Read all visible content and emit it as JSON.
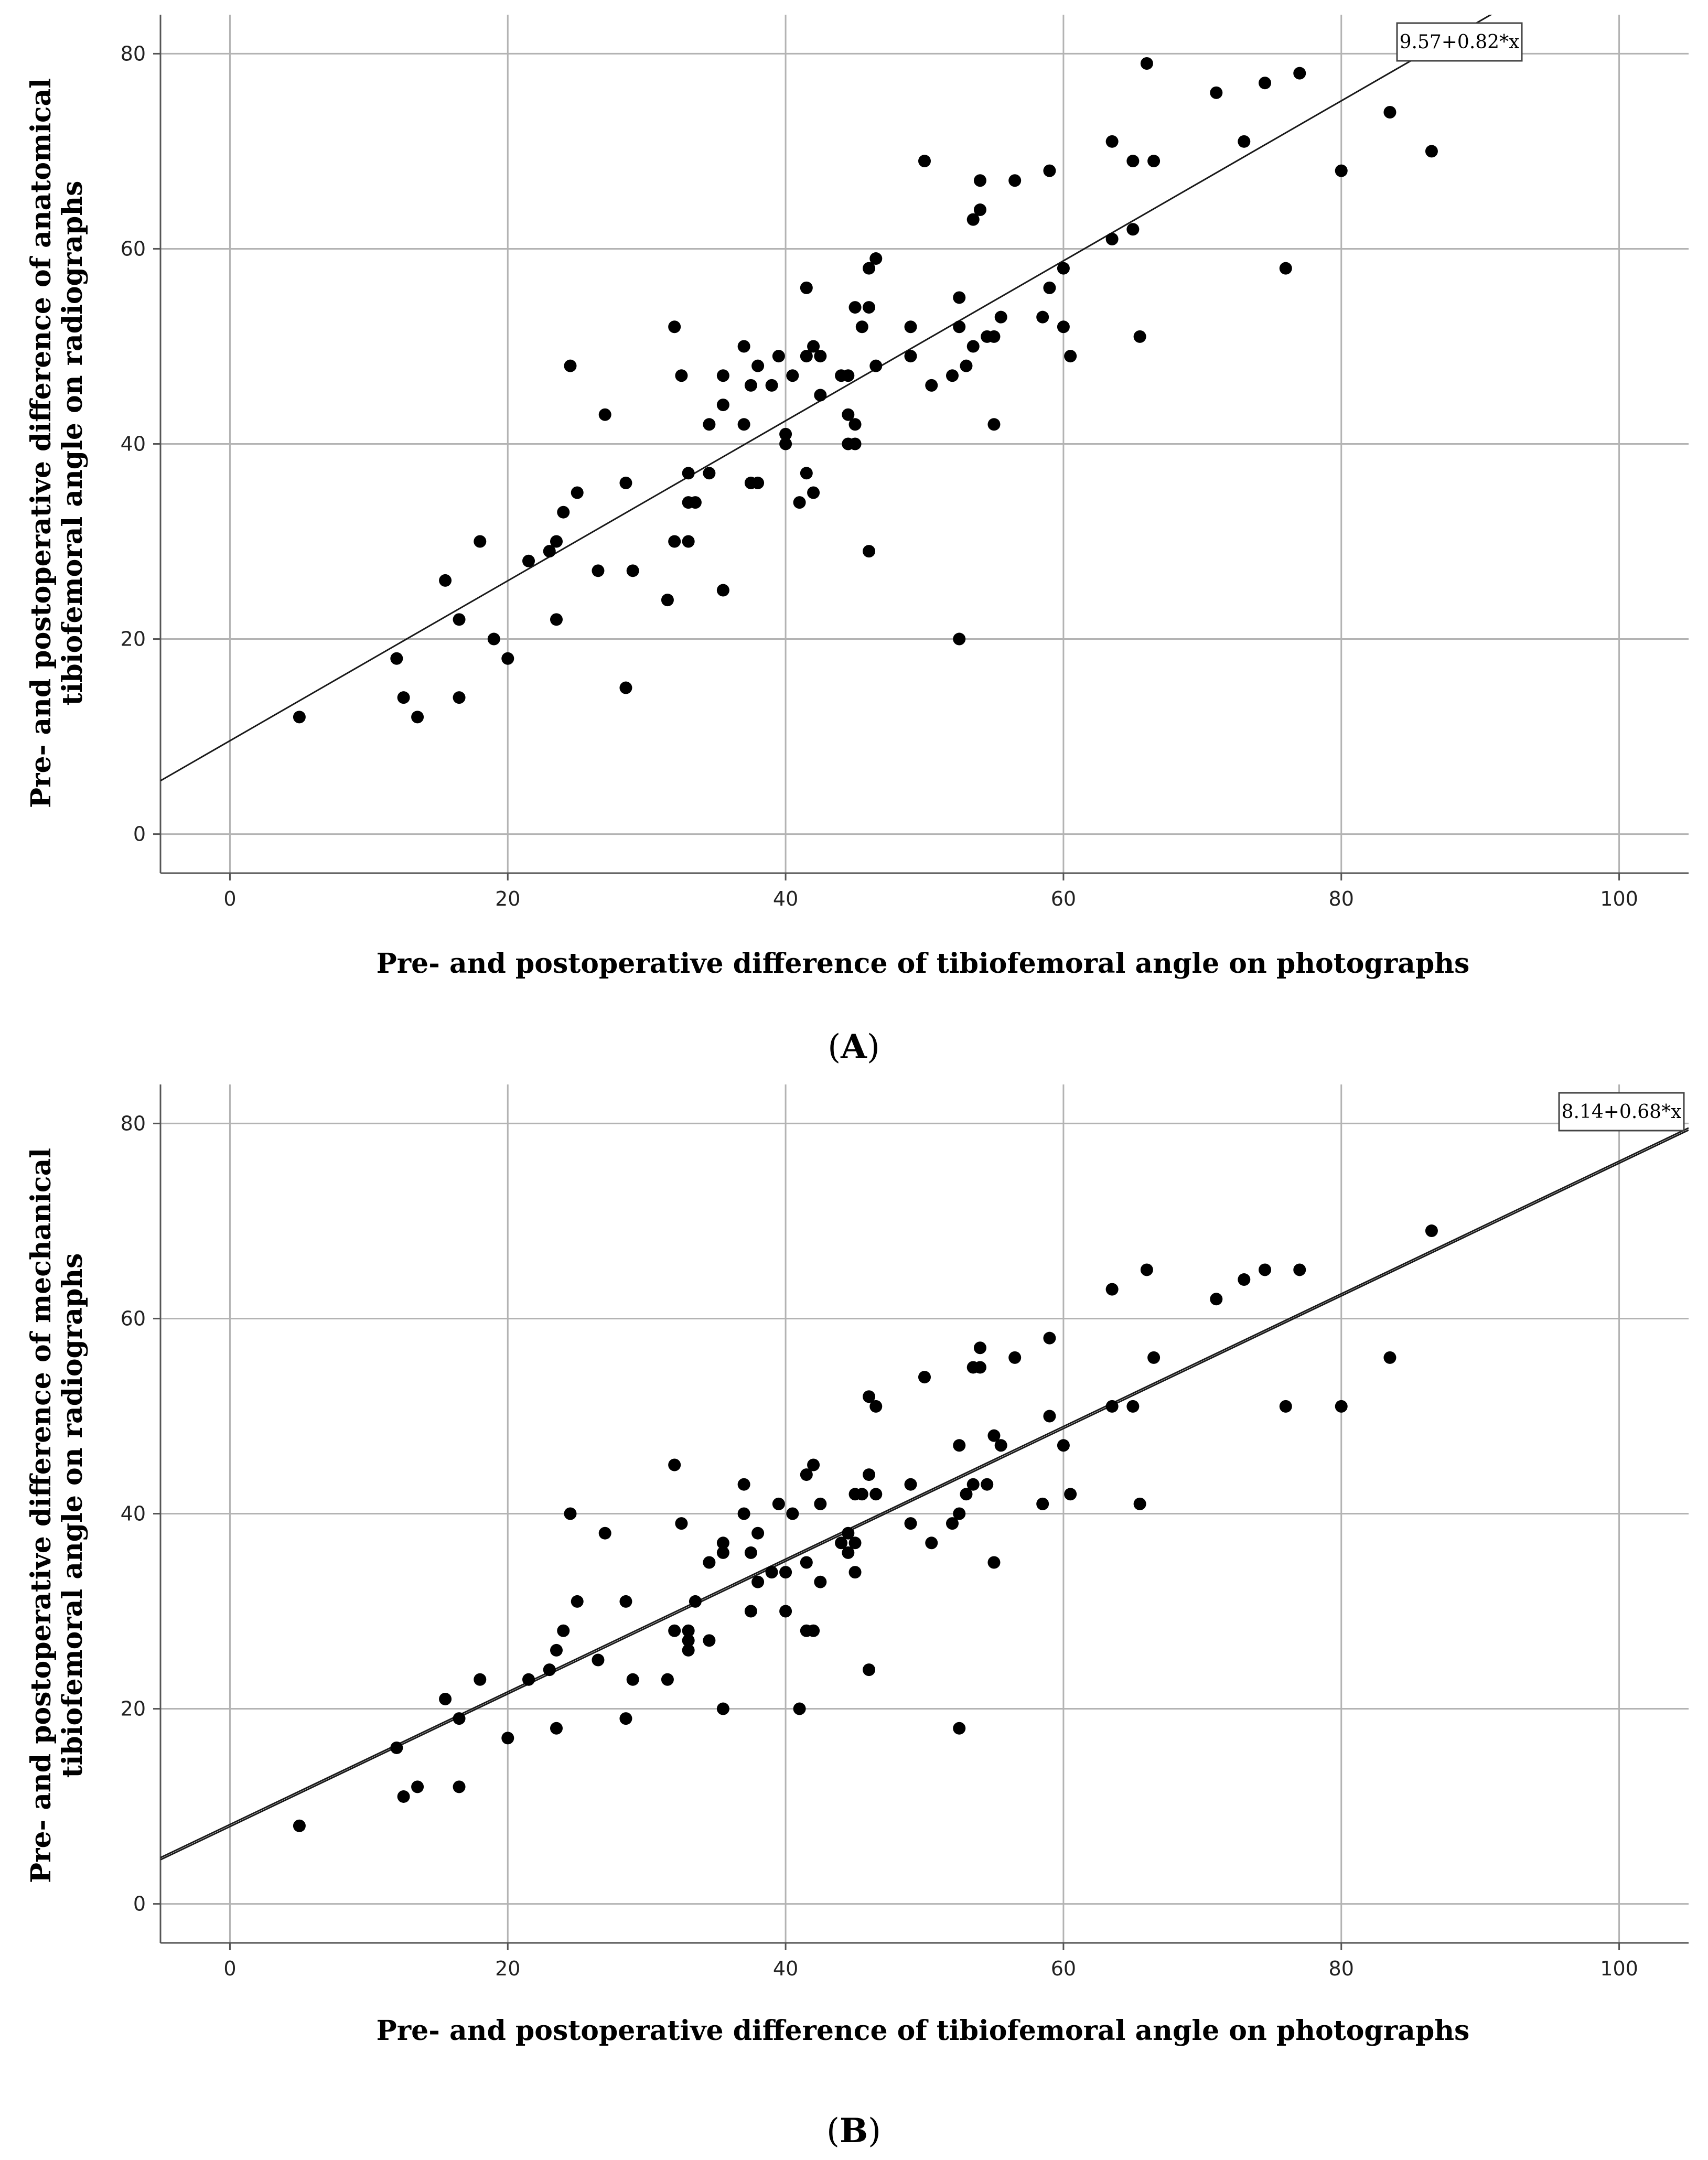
{
  "chart_data": [
    {
      "type": "scatter",
      "panel_label": "A",
      "xlabel": "Pre- and postoperative difference of tibiofemoral angle on photographs",
      "ylabel_line1": "Pre- and postoperative difference of anatomical",
      "ylabel_line2": "tibiofemoral angle on radiographs",
      "xlim": [
        -5,
        105
      ],
      "ylim": [
        -4,
        84
      ],
      "xticks": [
        0,
        20,
        40,
        60,
        80,
        100
      ],
      "yticks": [
        0,
        20,
        40,
        60,
        80
      ],
      "grid": true,
      "fit": {
        "intercept": 9.57,
        "slope": 0.82,
        "label": "9.57+0.82*x",
        "lines": 1
      },
      "points": [
        [
          5,
          12
        ],
        [
          12,
          18
        ],
        [
          12.5,
          14
        ],
        [
          13.5,
          12
        ],
        [
          15.5,
          26
        ],
        [
          16.5,
          22
        ],
        [
          16.5,
          14
        ],
        [
          18,
          30
        ],
        [
          19,
          20
        ],
        [
          20,
          18
        ],
        [
          21.5,
          28
        ],
        [
          23,
          29
        ],
        [
          23.5,
          22
        ],
        [
          23.5,
          30
        ],
        [
          24,
          33
        ],
        [
          24.5,
          48
        ],
        [
          25,
          35
        ],
        [
          26.5,
          27
        ],
        [
          27,
          43
        ],
        [
          28.5,
          36
        ],
        [
          28.5,
          15
        ],
        [
          29,
          27
        ],
        [
          31.5,
          24
        ],
        [
          32,
          52
        ],
        [
          32,
          30
        ],
        [
          32.5,
          47
        ],
        [
          33,
          37
        ],
        [
          33,
          34
        ],
        [
          33,
          30
        ],
        [
          33.5,
          34
        ],
        [
          34.5,
          42
        ],
        [
          34.5,
          37
        ],
        [
          35.5,
          47
        ],
        [
          35.5,
          44
        ],
        [
          35.5,
          25
        ],
        [
          37,
          50
        ],
        [
          37,
          42
        ],
        [
          37.5,
          46
        ],
        [
          37.5,
          36
        ],
        [
          38,
          48
        ],
        [
          38,
          36
        ],
        [
          39,
          46
        ],
        [
          39.5,
          49
        ],
        [
          40,
          41
        ],
        [
          40,
          40
        ],
        [
          40.5,
          47
        ],
        [
          41,
          34
        ],
        [
          41.5,
          56
        ],
        [
          41.5,
          49
        ],
        [
          41.5,
          37
        ],
        [
          42,
          50
        ],
        [
          42,
          35
        ],
        [
          42.5,
          49
        ],
        [
          42.5,
          45
        ],
        [
          44,
          47
        ],
        [
          44.5,
          47
        ],
        [
          44.5,
          43
        ],
        [
          44.5,
          40
        ],
        [
          45,
          54
        ],
        [
          45,
          42
        ],
        [
          45,
          40
        ],
        [
          45.5,
          52
        ],
        [
          46,
          58
        ],
        [
          46,
          54
        ],
        [
          46,
          29
        ],
        [
          46.5,
          59
        ],
        [
          46.5,
          48
        ],
        [
          49,
          52
        ],
        [
          49,
          49
        ],
        [
          50,
          69
        ],
        [
          50.5,
          46
        ],
        [
          52,
          47
        ],
        [
          52.5,
          55
        ],
        [
          52.5,
          52
        ],
        [
          52.5,
          20
        ],
        [
          53,
          48
        ],
        [
          53.5,
          63
        ],
        [
          53.5,
          50
        ],
        [
          54,
          67
        ],
        [
          54,
          64
        ],
        [
          54.5,
          51
        ],
        [
          55,
          51
        ],
        [
          55,
          42
        ],
        [
          55.5,
          53
        ],
        [
          56.5,
          67
        ],
        [
          58.5,
          53
        ],
        [
          59,
          68
        ],
        [
          59,
          56
        ],
        [
          60,
          58
        ],
        [
          60,
          52
        ],
        [
          60.5,
          49
        ],
        [
          63.5,
          71
        ],
        [
          63.5,
          61
        ],
        [
          65,
          69
        ],
        [
          65,
          62
        ],
        [
          65.5,
          51
        ],
        [
          66,
          79
        ],
        [
          66.5,
          69
        ],
        [
          71,
          76
        ],
        [
          73,
          71
        ],
        [
          74.5,
          77
        ],
        [
          76,
          58
        ],
        [
          77,
          78
        ],
        [
          80,
          68
        ],
        [
          83.5,
          74
        ],
        [
          86.5,
          70
        ]
      ]
    },
    {
      "type": "scatter",
      "panel_label": "B",
      "xlabel": "Pre- and postoperative difference of tibiofemoral angle on photographs",
      "ylabel_line1": "Pre- and postoperative difference of mechanical",
      "ylabel_line2": "tibiofemoral angle on radiographs",
      "xlim": [
        -5,
        105
      ],
      "ylim": [
        -4,
        84
      ],
      "xticks": [
        0,
        20,
        40,
        60,
        80,
        100
      ],
      "yticks": [
        0,
        20,
        40,
        60,
        80
      ],
      "grid": true,
      "fit": {
        "intercept": 8.14,
        "slope": 0.68,
        "label": "8.14+0.68*x",
        "lines": 2
      },
      "points": [
        [
          5,
          8
        ],
        [
          12,
          16
        ],
        [
          12.5,
          11
        ],
        [
          13.5,
          12
        ],
        [
          15.5,
          21
        ],
        [
          16.5,
          19
        ],
        [
          16.5,
          12
        ],
        [
          18,
          23
        ],
        [
          20,
          17
        ],
        [
          21.5,
          23
        ],
        [
          23,
          24
        ],
        [
          23.5,
          26
        ],
        [
          23.5,
          18
        ],
        [
          24,
          28
        ],
        [
          24.5,
          40
        ],
        [
          25,
          31
        ],
        [
          26.5,
          25
        ],
        [
          27,
          38
        ],
        [
          28.5,
          31
        ],
        [
          28.5,
          19
        ],
        [
          29,
          23
        ],
        [
          31.5,
          23
        ],
        [
          32,
          45
        ],
        [
          32,
          28
        ],
        [
          32.5,
          39
        ],
        [
          33,
          28
        ],
        [
          33,
          27
        ],
        [
          33,
          26
        ],
        [
          33.5,
          31
        ],
        [
          34.5,
          35
        ],
        [
          34.5,
          27
        ],
        [
          35.5,
          37
        ],
        [
          35.5,
          36
        ],
        [
          35.5,
          20
        ],
        [
          37,
          43
        ],
        [
          37,
          40
        ],
        [
          37.5,
          36
        ],
        [
          37.5,
          30
        ],
        [
          38,
          38
        ],
        [
          38,
          33
        ],
        [
          39,
          34
        ],
        [
          39.5,
          41
        ],
        [
          40,
          34
        ],
        [
          40,
          30
        ],
        [
          40.5,
          40
        ],
        [
          41,
          20
        ],
        [
          41.5,
          44
        ],
        [
          41.5,
          35
        ],
        [
          41.5,
          28
        ],
        [
          42,
          45
        ],
        [
          42,
          28
        ],
        [
          42.5,
          41
        ],
        [
          42.5,
          33
        ],
        [
          44,
          37
        ],
        [
          44.5,
          38
        ],
        [
          44.5,
          36
        ],
        [
          45,
          42
        ],
        [
          45,
          37
        ],
        [
          45,
          34
        ],
        [
          45.5,
          42
        ],
        [
          46,
          52
        ],
        [
          46,
          44
        ],
        [
          46,
          24
        ],
        [
          46.5,
          51
        ],
        [
          46.5,
          42
        ],
        [
          49,
          43
        ],
        [
          49,
          39
        ],
        [
          50,
          54
        ],
        [
          50.5,
          37
        ],
        [
          52,
          39
        ],
        [
          52.5,
          47
        ],
        [
          52.5,
          40
        ],
        [
          52.5,
          18
        ],
        [
          53,
          42
        ],
        [
          53.5,
          55
        ],
        [
          53.5,
          43
        ],
        [
          54,
          57
        ],
        [
          54,
          55
        ],
        [
          54.5,
          43
        ],
        [
          55,
          48
        ],
        [
          55,
          35
        ],
        [
          55.5,
          47
        ],
        [
          56.5,
          56
        ],
        [
          58.5,
          41
        ],
        [
          59,
          58
        ],
        [
          59,
          50
        ],
        [
          60,
          47
        ],
        [
          60.5,
          42
        ],
        [
          63.5,
          63
        ],
        [
          63.5,
          51
        ],
        [
          65,
          51
        ],
        [
          65.5,
          41
        ],
        [
          66,
          65
        ],
        [
          66.5,
          56
        ],
        [
          71,
          62
        ],
        [
          73,
          64
        ],
        [
          74.5,
          65
        ],
        [
          76,
          51
        ],
        [
          77,
          65
        ],
        [
          80,
          51
        ],
        [
          83.5,
          56
        ],
        [
          86.5,
          69
        ]
      ]
    }
  ]
}
